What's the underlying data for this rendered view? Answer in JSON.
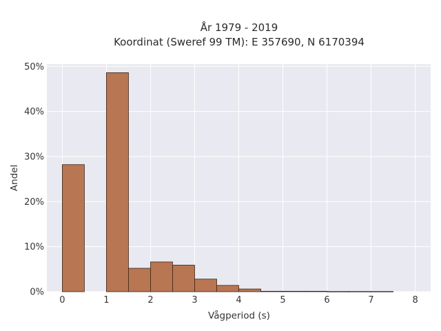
{
  "chart_data": {
    "type": "bar",
    "title_line1": "År 1979 - 2019",
    "title_line2": "Koordinat (Sweref 99 TM): E 357690, N 6170394",
    "xlabel": "Vågperiod (s)",
    "ylabel": "Andel",
    "xlim": [
      -0.35,
      8.35
    ],
    "ylim": [
      0,
      50.5
    ],
    "x_ticks": [
      0,
      1,
      2,
      3,
      4,
      5,
      6,
      7,
      8
    ],
    "y_ticks": [
      0,
      10,
      20,
      30,
      40,
      50
    ],
    "y_tick_labels": [
      "0%",
      "10%",
      "20%",
      "30%",
      "40%",
      "50%"
    ],
    "grid": true,
    "bin_width": 0.5,
    "bins": [
      {
        "x0": 0.0,
        "value": 28.2
      },
      {
        "x0": 0.5,
        "value": 0.0
      },
      {
        "x0": 1.0,
        "value": 48.6
      },
      {
        "x0": 1.5,
        "value": 5.2
      },
      {
        "x0": 2.0,
        "value": 6.6
      },
      {
        "x0": 2.5,
        "value": 5.9
      },
      {
        "x0": 3.0,
        "value": 2.8
      },
      {
        "x0": 3.5,
        "value": 1.4
      },
      {
        "x0": 4.0,
        "value": 0.6
      },
      {
        "x0": 4.5,
        "value": 0.1
      },
      {
        "x0": 5.0,
        "value": 0.1
      },
      {
        "x0": 5.5,
        "value": 0.1
      },
      {
        "x0": 6.0,
        "value": 0.05
      },
      {
        "x0": 6.5,
        "value": 0.05
      },
      {
        "x0": 7.0,
        "value": 0.05
      }
    ],
    "colors": {
      "bar_fill": "#b87652",
      "bar_stroke": "#3a2418",
      "plot_bg": "#e9e9f1",
      "grid": "#ffffff"
    }
  }
}
